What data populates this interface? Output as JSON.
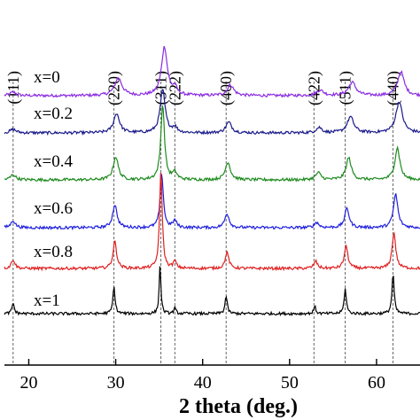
{
  "chart_data": {
    "type": "line",
    "xlabel": "2 theta (deg.)",
    "ylabel": "",
    "title": "",
    "xlim": [
      17.2,
      65
    ],
    "xticks": [
      20,
      30,
      40,
      50,
      60
    ],
    "grid": false,
    "legend": "none",
    "peak_markers": [
      {
        "label": "(111)",
        "x": 18.2
      },
      {
        "label": "(220)",
        "x": 29.8
      },
      {
        "label": "(311)",
        "x": 35.2
      },
      {
        "label": "(222)",
        "x": 36.8
      },
      {
        "label": "(400)",
        "x": 42.7
      },
      {
        "label": "(422)",
        "x": 52.8
      },
      {
        "label": "(511)",
        "x": 56.4
      },
      {
        "label": "(440)",
        "x": 61.9
      }
    ],
    "series": [
      {
        "name": "x=0",
        "color": "#8a2be2",
        "peaks": [
          [
            18.2,
            4,
            0.4
          ],
          [
            30.3,
            20,
            0.5
          ],
          [
            35.6,
            55,
            0.4
          ],
          [
            36.8,
            8,
            0.3
          ],
          [
            43.2,
            12,
            0.45
          ],
          [
            53.5,
            6,
            0.5
          ],
          [
            57.2,
            15,
            0.5
          ],
          [
            62.8,
            27,
            0.45
          ]
        ]
      },
      {
        "name": "x=0.2",
        "color": "#1a1a8c",
        "peaks": [
          [
            18.2,
            4,
            0.4
          ],
          [
            30.1,
            22,
            0.4
          ],
          [
            35.4,
            48,
            0.35
          ],
          [
            36.8,
            6,
            0.3
          ],
          [
            43.0,
            12,
            0.4
          ],
          [
            53.4,
            6,
            0.4
          ],
          [
            57.0,
            18,
            0.45
          ],
          [
            62.6,
            35,
            0.45
          ]
        ]
      },
      {
        "name": "x=0.4",
        "color": "#1e8b1e",
        "peaks": [
          [
            18.2,
            6,
            0.35
          ],
          [
            30.0,
            26,
            0.35
          ],
          [
            35.4,
            85,
            0.25
          ],
          [
            36.8,
            8,
            0.3
          ],
          [
            42.9,
            20,
            0.35
          ],
          [
            53.3,
            8,
            0.35
          ],
          [
            56.8,
            25,
            0.35
          ],
          [
            62.4,
            36,
            0.35
          ]
        ]
      },
      {
        "name": "x=0.6",
        "color": "#1f1fdd",
        "peaks": [
          [
            18.2,
            8,
            0.3
          ],
          [
            29.9,
            26,
            0.3
          ],
          [
            35.3,
            60,
            0.22
          ],
          [
            36.8,
            8,
            0.25
          ],
          [
            42.8,
            16,
            0.3
          ],
          [
            53.1,
            6,
            0.3
          ],
          [
            56.6,
            22,
            0.3
          ],
          [
            62.2,
            38,
            0.3
          ]
        ]
      },
      {
        "name": "x=0.8",
        "color": "#e02020",
        "peaks": [
          [
            18.2,
            10,
            0.25
          ],
          [
            29.9,
            30,
            0.25
          ],
          [
            35.2,
            110,
            0.18
          ],
          [
            36.8,
            8,
            0.2
          ],
          [
            42.8,
            18,
            0.25
          ],
          [
            53.0,
            8,
            0.25
          ],
          [
            56.5,
            25,
            0.25
          ],
          [
            62.0,
            40,
            0.25
          ]
        ]
      },
      {
        "name": "x=1",
        "color": "#000000",
        "peaks": [
          [
            18.2,
            12,
            0.15
          ],
          [
            29.8,
            30,
            0.15
          ],
          [
            35.1,
            55,
            0.12
          ],
          [
            36.8,
            6,
            0.15
          ],
          [
            42.7,
            20,
            0.15
          ],
          [
            52.9,
            8,
            0.15
          ],
          [
            56.4,
            28,
            0.15
          ],
          [
            61.9,
            45,
            0.15
          ]
        ]
      }
    ]
  }
}
